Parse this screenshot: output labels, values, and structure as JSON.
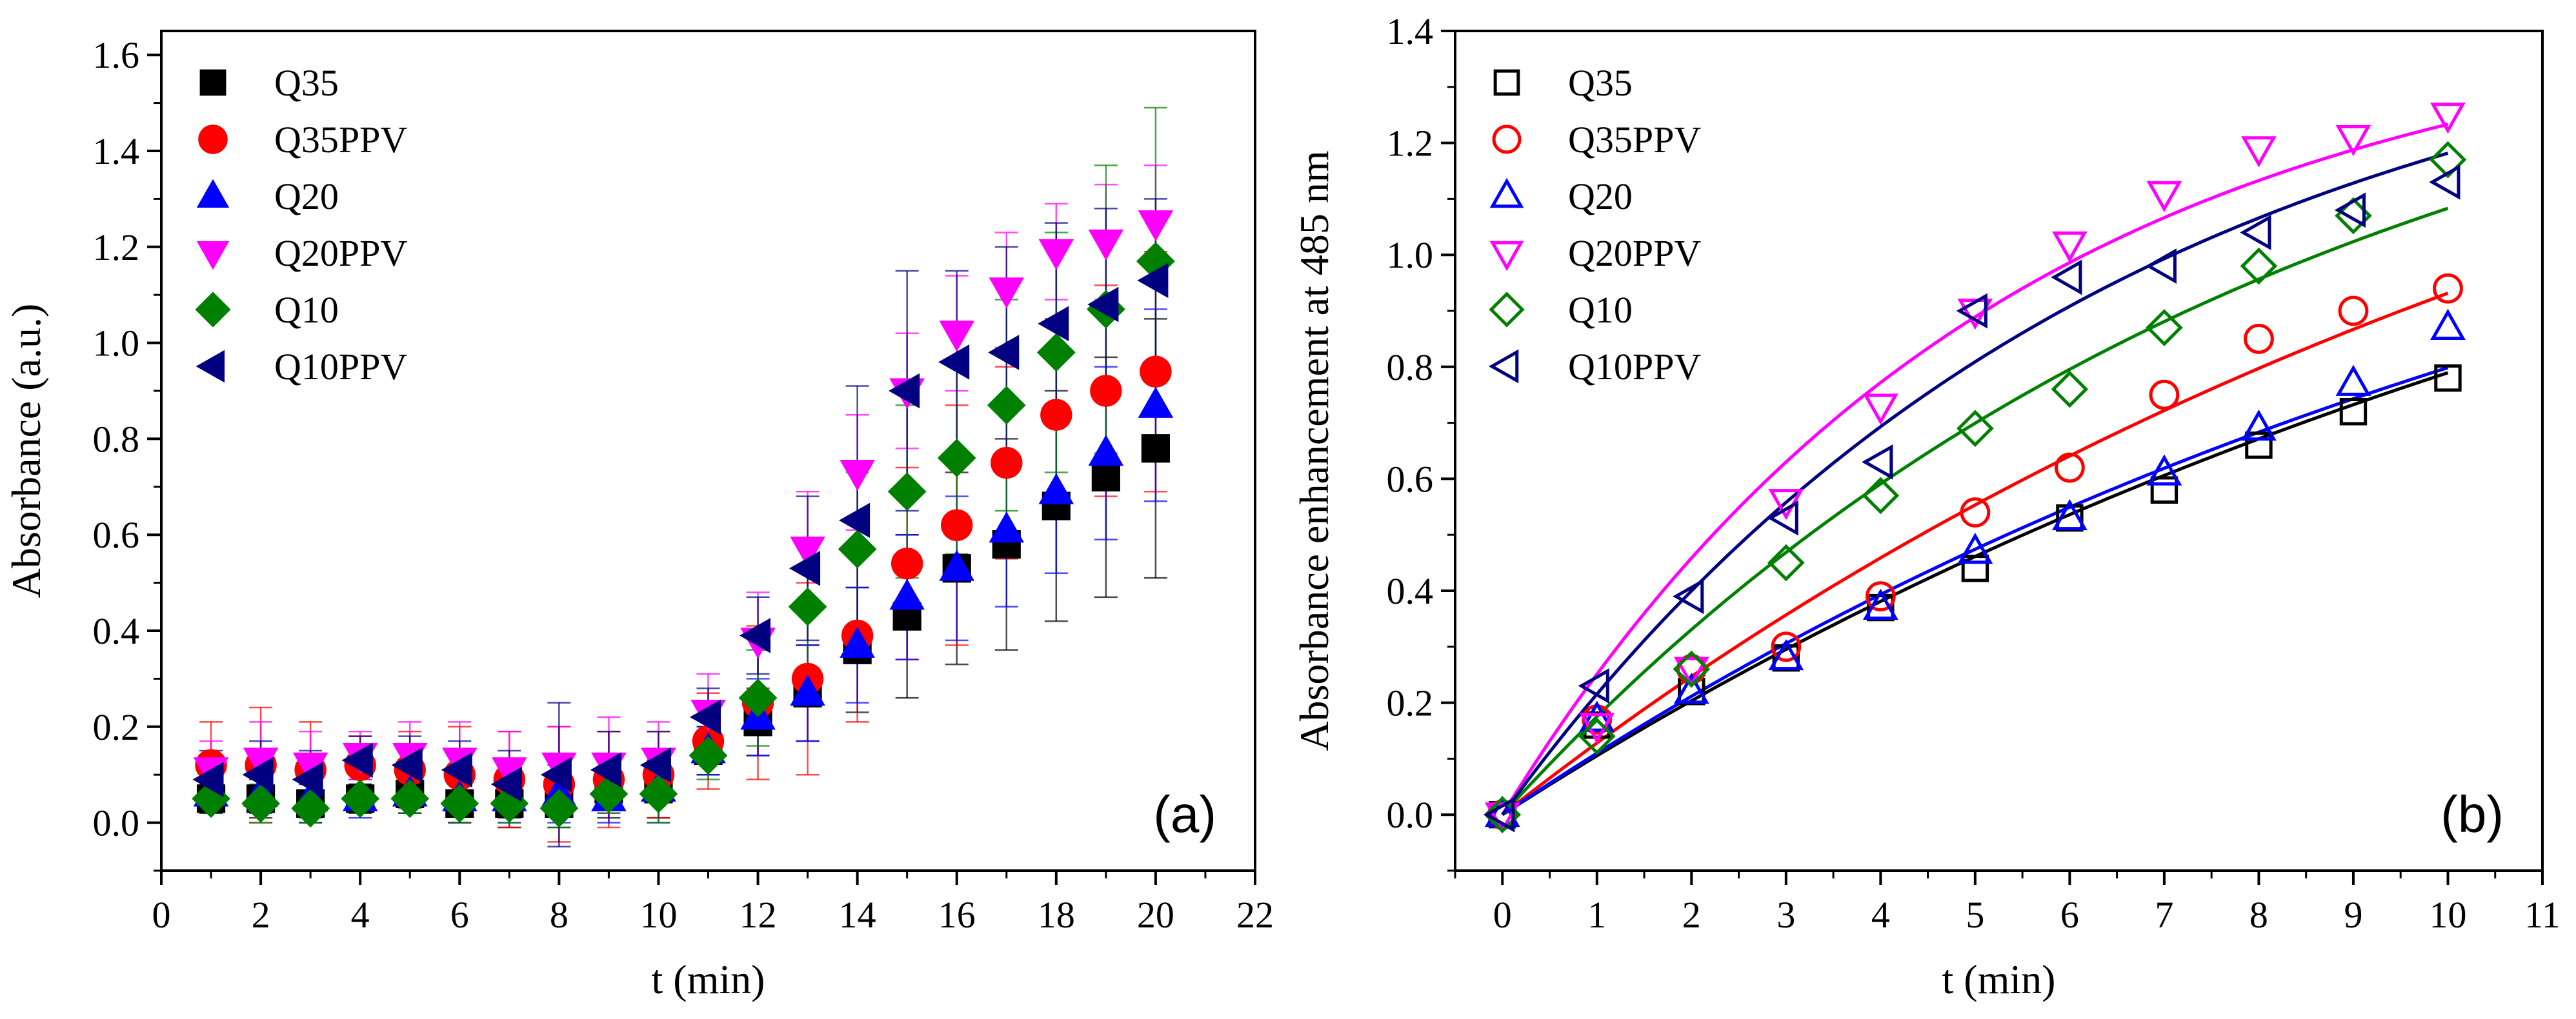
{
  "figure_colors": {
    "Q35": "#000000",
    "Q35PPV": "#ff0000",
    "Q20": "#0000ff",
    "Q20PPV": "#ff00ff",
    "Q10": "#008000",
    "Q10PPV": "#000080"
  },
  "chart_data": [
    {
      "type": "scatter",
      "panel_label": "(a)",
      "xlabel": "t (min)",
      "ylabel": "Absorbance (a.u.)",
      "xlim": [
        0,
        22
      ],
      "ylim": [
        -0.1,
        1.65
      ],
      "xticks": [
        0,
        2,
        4,
        6,
        8,
        10,
        12,
        14,
        16,
        18,
        20,
        22
      ],
      "yticks": [
        0.0,
        0.2,
        0.4,
        0.6,
        0.8,
        1.0,
        1.2,
        1.4,
        1.6
      ],
      "x": [
        1,
        2,
        3,
        4,
        5,
        6,
        7,
        8,
        9,
        10,
        11,
        12,
        13,
        14,
        15,
        16,
        17,
        18,
        19,
        20
      ],
      "legend_position": "top-left",
      "series": [
        {
          "name": "Q35",
          "marker": "square",
          "filled": true,
          "values": [
            0.05,
            0.05,
            0.04,
            0.05,
            0.06,
            0.04,
            0.04,
            0.04,
            0.07,
            0.07,
            0.15,
            0.21,
            0.27,
            0.36,
            0.43,
            0.53,
            0.58,
            0.66,
            0.72,
            0.78
          ],
          "errors": [
            0.03,
            0.04,
            0.04,
            0.03,
            0.04,
            0.04,
            0.05,
            0.05,
            0.06,
            0.06,
            0.05,
            0.07,
            0.1,
            0.13,
            0.17,
            0.2,
            0.22,
            0.24,
            0.25,
            0.27
          ]
        },
        {
          "name": "Q35PPV",
          "marker": "circle",
          "filled": true,
          "values": [
            0.12,
            0.12,
            0.11,
            0.12,
            0.11,
            0.1,
            0.09,
            0.08,
            0.09,
            0.1,
            0.17,
            0.25,
            0.3,
            0.39,
            0.54,
            0.62,
            0.75,
            0.85,
            0.9,
            0.94
          ],
          "errors": [
            0.09,
            0.12,
            0.1,
            0.06,
            0.08,
            0.1,
            0.1,
            0.12,
            0.1,
            0.09,
            0.1,
            0.16,
            0.2,
            0.18,
            0.2,
            0.25,
            0.2,
            0.2,
            0.22,
            0.25
          ]
        },
        {
          "name": "Q20",
          "marker": "triangle-up",
          "filled": true,
          "values": [
            0.06,
            0.06,
            0.05,
            0.05,
            0.06,
            0.05,
            0.05,
            0.06,
            0.05,
            0.07,
            0.15,
            0.22,
            0.27,
            0.37,
            0.47,
            0.53,
            0.61,
            0.69,
            0.77,
            0.87
          ],
          "errors": [
            0.04,
            0.04,
            0.05,
            0.04,
            0.04,
            0.05,
            0.05,
            0.06,
            0.05,
            0.07,
            0.05,
            0.08,
            0.1,
            0.12,
            0.13,
            0.15,
            0.16,
            0.17,
            0.18,
            0.2
          ]
        },
        {
          "name": "Q20PPV",
          "marker": "triangle-down",
          "filled": true,
          "values": [
            0.11,
            0.13,
            0.12,
            0.14,
            0.14,
            0.13,
            0.11,
            0.12,
            0.12,
            0.13,
            0.23,
            0.38,
            0.57,
            0.73,
            0.9,
            1.02,
            1.11,
            1.19,
            1.21,
            1.25
          ],
          "errors": [
            0.06,
            0.08,
            0.07,
            0.05,
            0.07,
            0.08,
            0.08,
            0.08,
            0.1,
            0.08,
            0.08,
            0.1,
            0.12,
            0.12,
            0.12,
            0.12,
            0.12,
            0.1,
            0.12,
            0.12
          ]
        },
        {
          "name": "Q10",
          "marker": "diamond",
          "filled": true,
          "values": [
            0.05,
            0.04,
            0.03,
            0.05,
            0.05,
            0.04,
            0.04,
            0.03,
            0.06,
            0.06,
            0.14,
            0.26,
            0.45,
            0.57,
            0.69,
            0.76,
            0.87,
            0.98,
            1.07,
            1.17
          ],
          "errors": [
            0.03,
            0.04,
            0.03,
            0.03,
            0.03,
            0.04,
            0.04,
            0.04,
            0.04,
            0.06,
            0.05,
            0.1,
            0.14,
            0.16,
            0.18,
            0.2,
            0.22,
            0.25,
            0.3,
            0.32
          ]
        },
        {
          "name": "Q10PPV",
          "marker": "triangle-left",
          "filled": true,
          "values": [
            0.09,
            0.1,
            0.09,
            0.13,
            0.12,
            0.11,
            0.08,
            0.1,
            0.11,
            0.12,
            0.22,
            0.39,
            0.53,
            0.63,
            0.9,
            0.96,
            0.98,
            1.04,
            1.08,
            1.13
          ],
          "errors": [
            0.06,
            0.07,
            0.06,
            0.05,
            0.06,
            0.06,
            0.07,
            0.15,
            0.08,
            0.07,
            0.06,
            0.08,
            0.15,
            0.28,
            0.25,
            0.19,
            0.22,
            0.21,
            0.2,
            0.17
          ]
        }
      ]
    },
    {
      "type": "scatter",
      "panel_label": "(b)",
      "xlabel": "t (min)",
      "ylabel": "Absorbance enhancement at 485 nm",
      "xlim": [
        -0.5,
        11
      ],
      "ylim": [
        -0.1,
        1.4
      ],
      "xticks": [
        0,
        1,
        2,
        3,
        4,
        5,
        6,
        7,
        8,
        9,
        10,
        11
      ],
      "yticks": [
        0.0,
        0.2,
        0.4,
        0.6,
        0.8,
        1.0,
        1.2,
        1.4
      ],
      "x": [
        0,
        1,
        2,
        3,
        4,
        5,
        6,
        7,
        8,
        9,
        10
      ],
      "legend_position": "top-left",
      "fit_lines": true,
      "series": [
        {
          "name": "Q35",
          "marker": "square",
          "filled": false,
          "values": [
            0.0,
            0.16,
            0.22,
            0.28,
            0.37,
            0.44,
            0.53,
            0.58,
            0.66,
            0.72,
            0.78
          ],
          "fit": {
            "amplitude": 1.6,
            "k": 0.068
          }
        },
        {
          "name": "Q35PPV",
          "marker": "circle",
          "filled": false,
          "values": [
            0.0,
            0.17,
            0.26,
            0.3,
            0.39,
            0.54,
            0.62,
            0.75,
            0.85,
            0.9,
            0.94
          ],
          "fit": {
            "amplitude": 1.75,
            "k": 0.076
          }
        },
        {
          "name": "Q20",
          "marker": "triangle-up",
          "filled": false,
          "values": [
            0.0,
            0.17,
            0.22,
            0.28,
            0.37,
            0.47,
            0.53,
            0.61,
            0.69,
            0.77,
            0.87
          ],
          "fit": {
            "amplitude": 1.5,
            "k": 0.076
          }
        },
        {
          "name": "Q20PPV",
          "marker": "triangle-down",
          "filled": false,
          "values": [
            0.0,
            0.16,
            0.26,
            0.56,
            0.73,
            0.9,
            1.02,
            1.11,
            1.19,
            1.21,
            1.25
          ],
          "fit": {
            "amplitude": 1.45,
            "k": 0.19
          }
        },
        {
          "name": "Q10",
          "marker": "diamond",
          "filled": false,
          "values": [
            0.0,
            0.14,
            0.26,
            0.45,
            0.57,
            0.69,
            0.76,
            0.87,
            0.98,
            1.07,
            1.17
          ],
          "fit": {
            "amplitude": 1.55,
            "k": 0.12
          }
        },
        {
          "name": "Q10PPV",
          "marker": "triangle-left",
          "filled": false,
          "values": [
            0.0,
            0.23,
            0.39,
            0.53,
            0.63,
            0.9,
            0.96,
            0.98,
            1.04,
            1.08,
            1.13
          ],
          "fit": {
            "amplitude": 1.5,
            "k": 0.155
          }
        }
      ]
    }
  ]
}
